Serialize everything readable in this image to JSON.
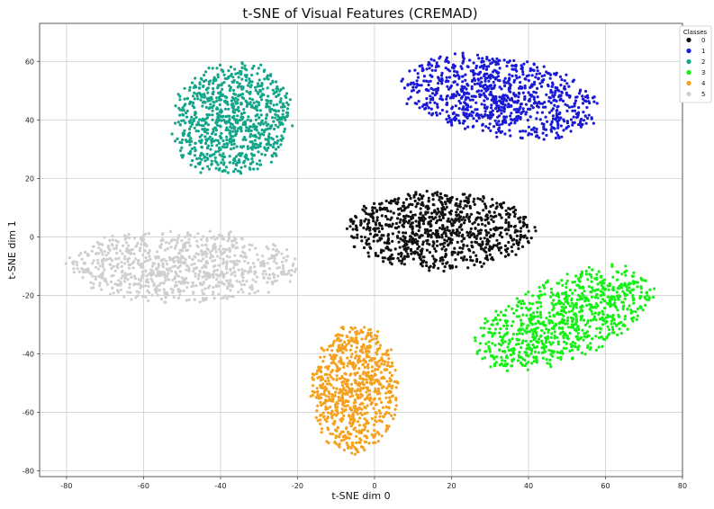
{
  "chart_data": {
    "type": "scatter",
    "title": "t-SNE of Visual Features (CREMAD)",
    "xlabel": "t-SNE dim 0",
    "ylabel": "t-SNE dim 1",
    "xlim": [
      -87,
      80
    ],
    "ylim": [
      -82,
      73
    ],
    "xticks": [
      -80,
      -60,
      -40,
      -20,
      0,
      20,
      40,
      60,
      80
    ],
    "yticks": [
      -80,
      -60,
      -40,
      -20,
      0,
      20,
      40,
      60
    ],
    "grid": true,
    "legend": {
      "title": "Classes",
      "position": "top-right"
    },
    "series": [
      {
        "name": "0",
        "color": "#111111",
        "cluster": {
          "center": [
            17,
            2
          ],
          "rx": 24,
          "ry": 13,
          "tilt_deg": 0,
          "count": 900
        }
      },
      {
        "name": "1",
        "color": "#1a1ad6",
        "cluster": {
          "center": [
            32,
            48
          ],
          "rx": 26,
          "ry": 13,
          "tilt_deg": -14,
          "count": 900
        }
      },
      {
        "name": "2",
        "color": "#12a58a",
        "cluster": {
          "center": [
            -37,
            40
          ],
          "rx": 15,
          "ry": 19,
          "tilt_deg": -12,
          "count": 850
        }
      },
      {
        "name": "3",
        "color": "#14f014",
        "cluster": {
          "center": [
            49,
            -28
          ],
          "rx": 26,
          "ry": 13,
          "tilt_deg": 32,
          "count": 850
        }
      },
      {
        "name": "4",
        "color": "#f5a11e",
        "cluster": {
          "center": [
            -5,
            -52
          ],
          "rx": 11,
          "ry": 22,
          "tilt_deg": 0,
          "count": 800
        }
      },
      {
        "name": "5",
        "color": "#cfcfcf",
        "cluster": {
          "center": [
            -50,
            -10
          ],
          "rx": 30,
          "ry": 12,
          "tilt_deg": 0,
          "count": 850
        }
      }
    ]
  }
}
